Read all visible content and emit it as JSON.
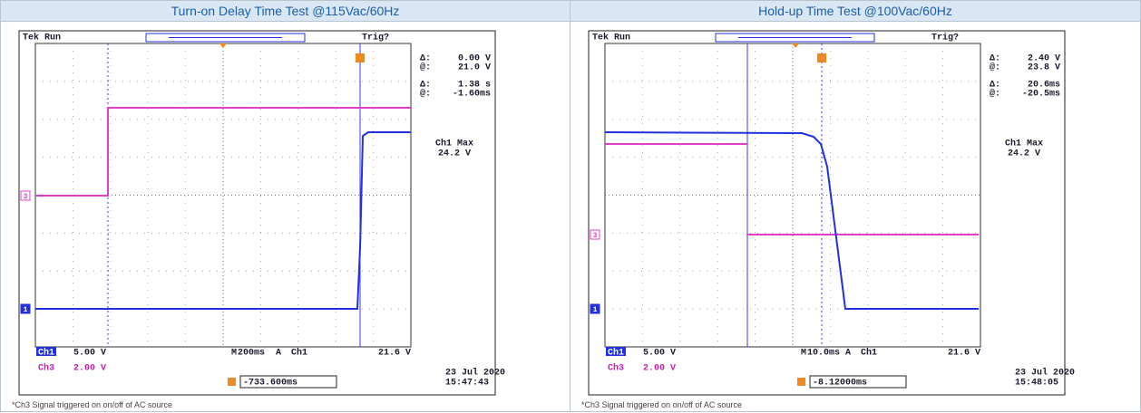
{
  "panels": [
    {
      "title": "Turn-on Delay Time Test @115Vac/60Hz",
      "scope": {
        "header": [
          "Tek",
          "Run",
          "Trig?"
        ],
        "readouts": [
          "Δ:",
          "0.00 V",
          "@:",
          "21.0 V",
          "Δ:",
          "1.38 s",
          "@:",
          "-1.60ms"
        ],
        "max": [
          "Ch1 Max",
          "24.2 V"
        ],
        "channels": [
          [
            "Ch1",
            "5.00 V"
          ],
          [
            "Ch3",
            "2.00 V"
          ]
        ],
        "timebase": [
          "M",
          "200ms",
          "A",
          "Ch1",
          "21.6 V"
        ],
        "offset": "-733.600ms",
        "date": "23 Jul 2020",
        "time": "15:47:43",
        "markers": [
          "3",
          "1"
        ]
      },
      "note": "*Ch3 Signal triggered on on/off of AC source"
    },
    {
      "title": "Hold-up Time Test @100Vac/60Hz",
      "scope": {
        "header": [
          "Tek",
          "Run",
          "Trig?"
        ],
        "readouts": [
          "Δ:",
          "2.40 V",
          "@:",
          "23.8 V",
          "Δ:",
          "20.6ms",
          "@:",
          "-20.5ms"
        ],
        "max": [
          "Ch1 Max",
          "24.2 V"
        ],
        "channels": [
          [
            "Ch1",
            "5.00 V"
          ],
          [
            "Ch3",
            "2.00 V"
          ]
        ],
        "timebase": [
          "M",
          "10.0ms",
          "A",
          "Ch1",
          "21.6 V"
        ],
        "offset": "-8.12000ms",
        "date": "23 Jul 2020",
        "time": "15:48:05",
        "markers": [
          "3",
          "1"
        ]
      },
      "note": "*Ch3 Signal triggered on on/off of AC source"
    }
  ]
}
